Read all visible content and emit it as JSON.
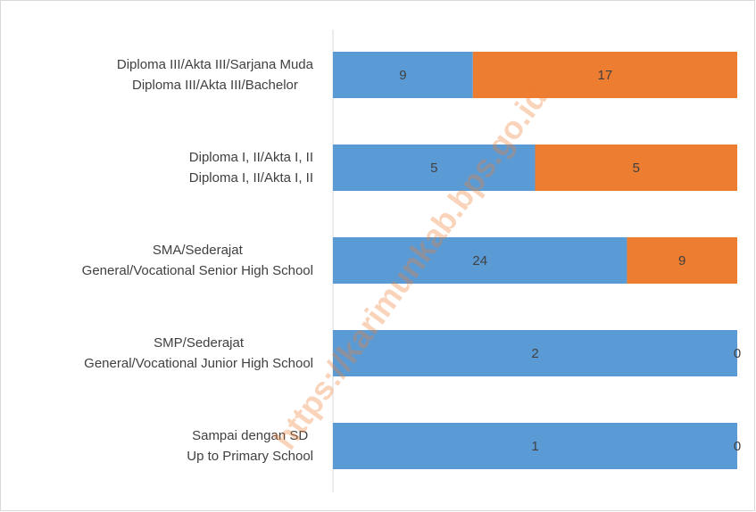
{
  "chart_data": {
    "type": "stacked_bar_100_horizontal",
    "categories": [
      [
        "Diploma III/Akta III/Sarjana Muda",
        "Diploma III/Akta III/Bachelor"
      ],
      [
        "Diploma I, II/Akta I, II",
        "Diploma I, II/Akta I, II"
      ],
      [
        "SMA/Sederajat",
        "General/Vocational Senior High School"
      ],
      [
        "SMP/Sederajat",
        "General/Vocational Junior High School"
      ],
      [
        "Sampai dengan SD",
        "Up to Primary School"
      ]
    ],
    "series": [
      {
        "color": "#5b9bd5",
        "values": [
          9,
          5,
          24,
          2,
          1
        ]
      },
      {
        "color": "#ed7d31",
        "values": [
          17,
          5,
          9,
          0,
          0
        ]
      }
    ],
    "watermark": "https://karimunkab.bps.go.id"
  }
}
